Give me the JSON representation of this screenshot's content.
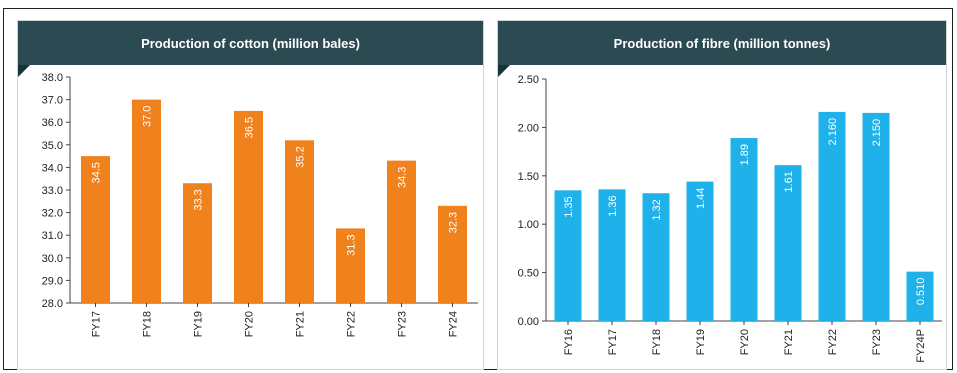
{
  "chart_data": [
    {
      "type": "bar",
      "title": "Production of cotton (million bales)",
      "xlabel": "",
      "ylabel": "",
      "categories": [
        "FY17",
        "FY18",
        "FY19",
        "FY20",
        "FY21",
        "FY22",
        "FY23",
        "FY24"
      ],
      "values": [
        34.5,
        37.0,
        33.3,
        36.5,
        35.2,
        31.3,
        34.3,
        32.3
      ],
      "value_labels": [
        "34.5",
        "37.0",
        "33.3",
        "36.5",
        "35.2",
        "31.3",
        "34.3",
        "32.3"
      ],
      "ylim": [
        28.0,
        38.0
      ],
      "yticks": [
        "28.0",
        "29.0",
        "30.0",
        "31.0",
        "32.0",
        "33.0",
        "34.0",
        "35.0",
        "36.0",
        "37.0",
        "38.0"
      ],
      "color": "#f0821e",
      "header_color": "#2c4a52",
      "grid": false
    },
    {
      "type": "bar",
      "title": "Production of fibre (million tonnes)",
      "xlabel": "",
      "ylabel": "",
      "categories": [
        "FY16",
        "FY17",
        "FY18",
        "FY19",
        "FY20",
        "FY21",
        "FY22",
        "FY23",
        "FY24P"
      ],
      "values": [
        1.35,
        1.36,
        1.32,
        1.44,
        1.89,
        1.61,
        2.16,
        2.15,
        0.51
      ],
      "value_labels": [
        "1.35",
        "1.36",
        "1.32",
        "1.44",
        "1.89",
        "1.61",
        "2.160",
        "2.150",
        "0.510"
      ],
      "ylim": [
        0.0,
        2.5
      ],
      "yticks": [
        "0.00",
        "0.50",
        "1.00",
        "1.50",
        "2.00",
        "2.50"
      ],
      "color": "#1fb2ea",
      "header_color": "#2c4a52",
      "grid": false
    }
  ]
}
